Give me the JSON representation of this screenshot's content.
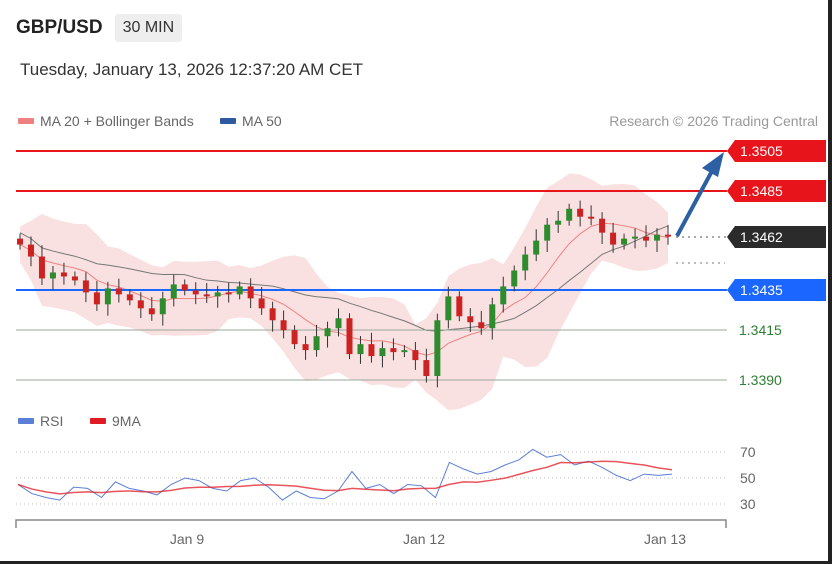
{
  "header": {
    "pair": "GBP/USD",
    "timeframe": "30 MIN",
    "datetime": "Tuesday, January 13, 2026 12:37:20 AM CET"
  },
  "legend": {
    "ma20": "MA 20 + Bollinger Bands",
    "ma50": "MA 50",
    "rsi": "RSI",
    "rsi_ma": "9MA"
  },
  "credit": "Research © 2026 Trading Central",
  "colors": {
    "resistance": "#e8141b",
    "current": "#2b2b2b",
    "pivot": "#1a66ff",
    "support": "#2e7d32",
    "ma20": "#f08080",
    "ma50": "#2d5a9e",
    "rsi": "#5b7fd6",
    "rsi_ma": "#e01b24",
    "up": "#2e8b2e",
    "down": "#cc2222",
    "arrow": "#2d5fa3"
  },
  "chart_data": [
    {
      "type": "candlestick",
      "title": "GBP/USD",
      "levels": [
        {
          "label": "1.3505",
          "value": 1.3505,
          "kind": "resistance"
        },
        {
          "label": "1.3485",
          "value": 1.3485,
          "kind": "resistance"
        },
        {
          "label": "1.3462",
          "value": 1.3462,
          "kind": "current"
        },
        {
          "label": "1.3435",
          "value": 1.3435,
          "kind": "pivot"
        },
        {
          "label": "1.3415",
          "value": 1.3415,
          "kind": "support"
        },
        {
          "label": "1.3390",
          "value": 1.339,
          "kind": "support"
        }
      ],
      "forecast": "up",
      "x_ticks": [
        "Jan 9",
        "Jan 12",
        "Jan 13"
      ],
      "close": [
        1.3458,
        1.3452,
        1.3441,
        1.3444,
        1.3442,
        1.344,
        1.3434,
        1.3428,
        1.3436,
        1.3433,
        1.343,
        1.3426,
        1.3423,
        1.3431,
        1.3438,
        1.3435,
        1.3433,
        1.3432,
        1.3434,
        1.3433,
        1.3437,
        1.3431,
        1.3426,
        1.342,
        1.3415,
        1.3408,
        1.3405,
        1.3412,
        1.3416,
        1.3421,
        1.3403,
        1.3408,
        1.3402,
        1.3406,
        1.3404,
        1.3405,
        1.34,
        1.3392,
        1.342,
        1.3432,
        1.3422,
        1.3419,
        1.3416,
        1.3428,
        1.3437,
        1.3445,
        1.3453,
        1.346,
        1.3468,
        1.347,
        1.3476,
        1.3472,
        1.3471,
        1.3464,
        1.3458,
        1.3461,
        1.3462,
        1.346,
        1.3463,
        1.3462
      ],
      "series": [
        {
          "name": "MA 20 + Bollinger Bands"
        },
        {
          "name": "MA 50"
        }
      ]
    },
    {
      "type": "line",
      "title": "",
      "y_ticks": [
        70,
        50,
        30
      ],
      "series": [
        {
          "name": "RSI",
          "values": [
            45,
            38,
            35,
            33,
            43,
            42,
            35,
            47,
            42,
            40,
            37,
            45,
            50,
            48,
            42,
            40,
            48,
            50,
            43,
            33,
            40,
            35,
            34,
            40,
            55,
            42,
            45,
            38,
            45,
            44,
            35,
            62,
            57,
            53,
            55,
            60,
            64,
            72,
            66,
            68,
            60,
            63,
            58,
            52,
            48,
            53,
            52,
            53
          ]
        },
        {
          "name": "9MA"
        }
      ]
    }
  ]
}
